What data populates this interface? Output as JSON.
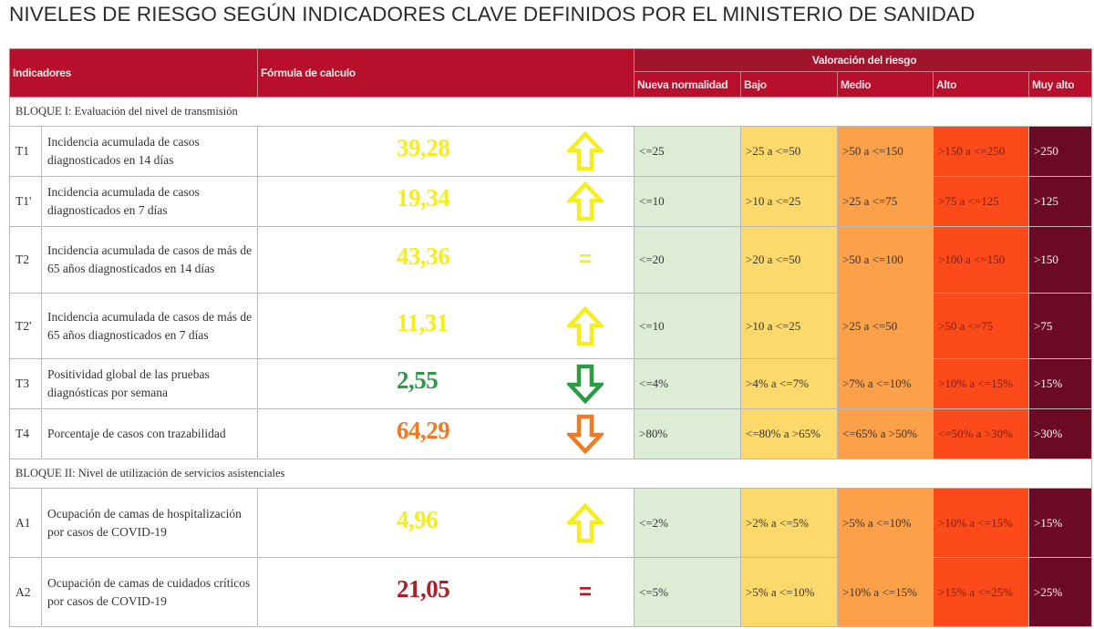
{
  "title": "NIVELES DE RIESGO SEGÚN INDICADORES CLAVE DEFINIDOS POR EL MINISTERIO DE SANIDAD",
  "header": {
    "indicadores": "Indicadores",
    "formula": "Fórmula de calculo",
    "valoracion": "Valoración del riesgo",
    "levels": [
      "Nueva normalidad",
      "Bajo",
      "Medio",
      "Alto",
      "Muy alto"
    ]
  },
  "colors": {
    "header": "#b8102c",
    "nueva_normalidad": "#dcecd5",
    "bajo": "#fcd96a",
    "medio": "#fca04a",
    "alto": "#fd4a1a",
    "muy_alto": "#6c0a26",
    "value_yellow": "#f6ee1c",
    "value_green": "#2a9a44",
    "value_orange": "#f07a22",
    "value_red": "#b01c28"
  },
  "blocks": [
    {
      "label": "BLOQUE I: Evaluación del nivel de transmisión",
      "rows": [
        {
          "code": "T1",
          "desc": "Incidencia acumulada de casos diagnosticados en 14 días",
          "value": "39,28",
          "value_color": "#f6ee1c",
          "trend": "up-arrow-icon",
          "trend_color": "#f6ee1c",
          "levels": [
            "<=25",
            ">25 a <=50",
            ">50 a <=150",
            ">150 a <=250",
            ">250"
          ]
        },
        {
          "code": "T1'",
          "desc": "Incidencia acumulada de casos diagnosticados en 7 días",
          "value": "19,34",
          "value_color": "#f6ee1c",
          "trend": "up-arrow-icon",
          "trend_color": "#f6ee1c",
          "levels": [
            "<=10",
            ">10 a <=25",
            ">25 a <=75",
            ">75 a <=125",
            ">125"
          ]
        },
        {
          "code": "T2",
          "desc": "Incidencia acumulada de casos de más de 65 años diagnosticados en 14 días",
          "value": "43,36",
          "value_color": "#f6ee1c",
          "trend": "equal-icon",
          "trend_text": "=",
          "trend_color": "#f6ee1c",
          "levels": [
            "<=20",
            ">20 a <=50",
            ">50 a <=100",
            ">100 a <=150",
            ">150"
          ]
        },
        {
          "code": "T2'",
          "desc": "Incidencia acumulada de casos de más de 65 años diagnosticados en 7 días",
          "value": "11,31",
          "value_color": "#f6ee1c",
          "trend": "up-arrow-icon",
          "trend_color": "#f6ee1c",
          "levels": [
            "<=10",
            ">10 a <=25",
            ">25 a <=50",
            ">50 a <=75",
            ">75"
          ]
        },
        {
          "code": "T3",
          "desc": "Positividad global de las pruebas diagnósticas por semana",
          "value": "2,55",
          "value_color": "#2a9a44",
          "trend": "down-arrow-icon",
          "trend_color": "#2a9a44",
          "levels": [
            "<=4%",
            ">4% a <=7%",
            ">7% a <=10%",
            ">10% a <=15%",
            ">15%"
          ]
        },
        {
          "code": "T4",
          "desc": "Porcentaje de casos con trazabilidad",
          "value": "64,29",
          "value_color": "#f07a22",
          "trend": "down-arrow-icon",
          "trend_color": "#f07a22",
          "levels": [
            ">80%",
            "<=80% a >65%",
            "<=65% a >50%",
            "<=50% a >30%",
            ">30%"
          ]
        }
      ]
    },
    {
      "label": "BLOQUE II: Nivel de utilización de servicios asistenciales",
      "rows": [
        {
          "code": "A1",
          "desc": "Ocupación de camas de hospitalización por casos de COVID-19",
          "value": "4,96",
          "value_color": "#f6ee1c",
          "trend": "up-arrow-icon",
          "trend_color": "#f6ee1c",
          "levels": [
            "<=2%",
            ">2% a <=5%",
            ">5% a <=10%",
            ">10% a <=15%",
            ">15%"
          ]
        },
        {
          "code": "A2",
          "desc": "Ocupación de camas de cuidados críticos por casos de COVID-19",
          "value": "21,05",
          "value_color": "#b01c28",
          "trend": "equal-icon",
          "trend_text": "=",
          "trend_color": "#b01c28",
          "levels": [
            "<=5%",
            ">5% a <=10%",
            ">10% a <=15%",
            ">15% a <=25%",
            ">25%"
          ]
        }
      ]
    }
  ]
}
